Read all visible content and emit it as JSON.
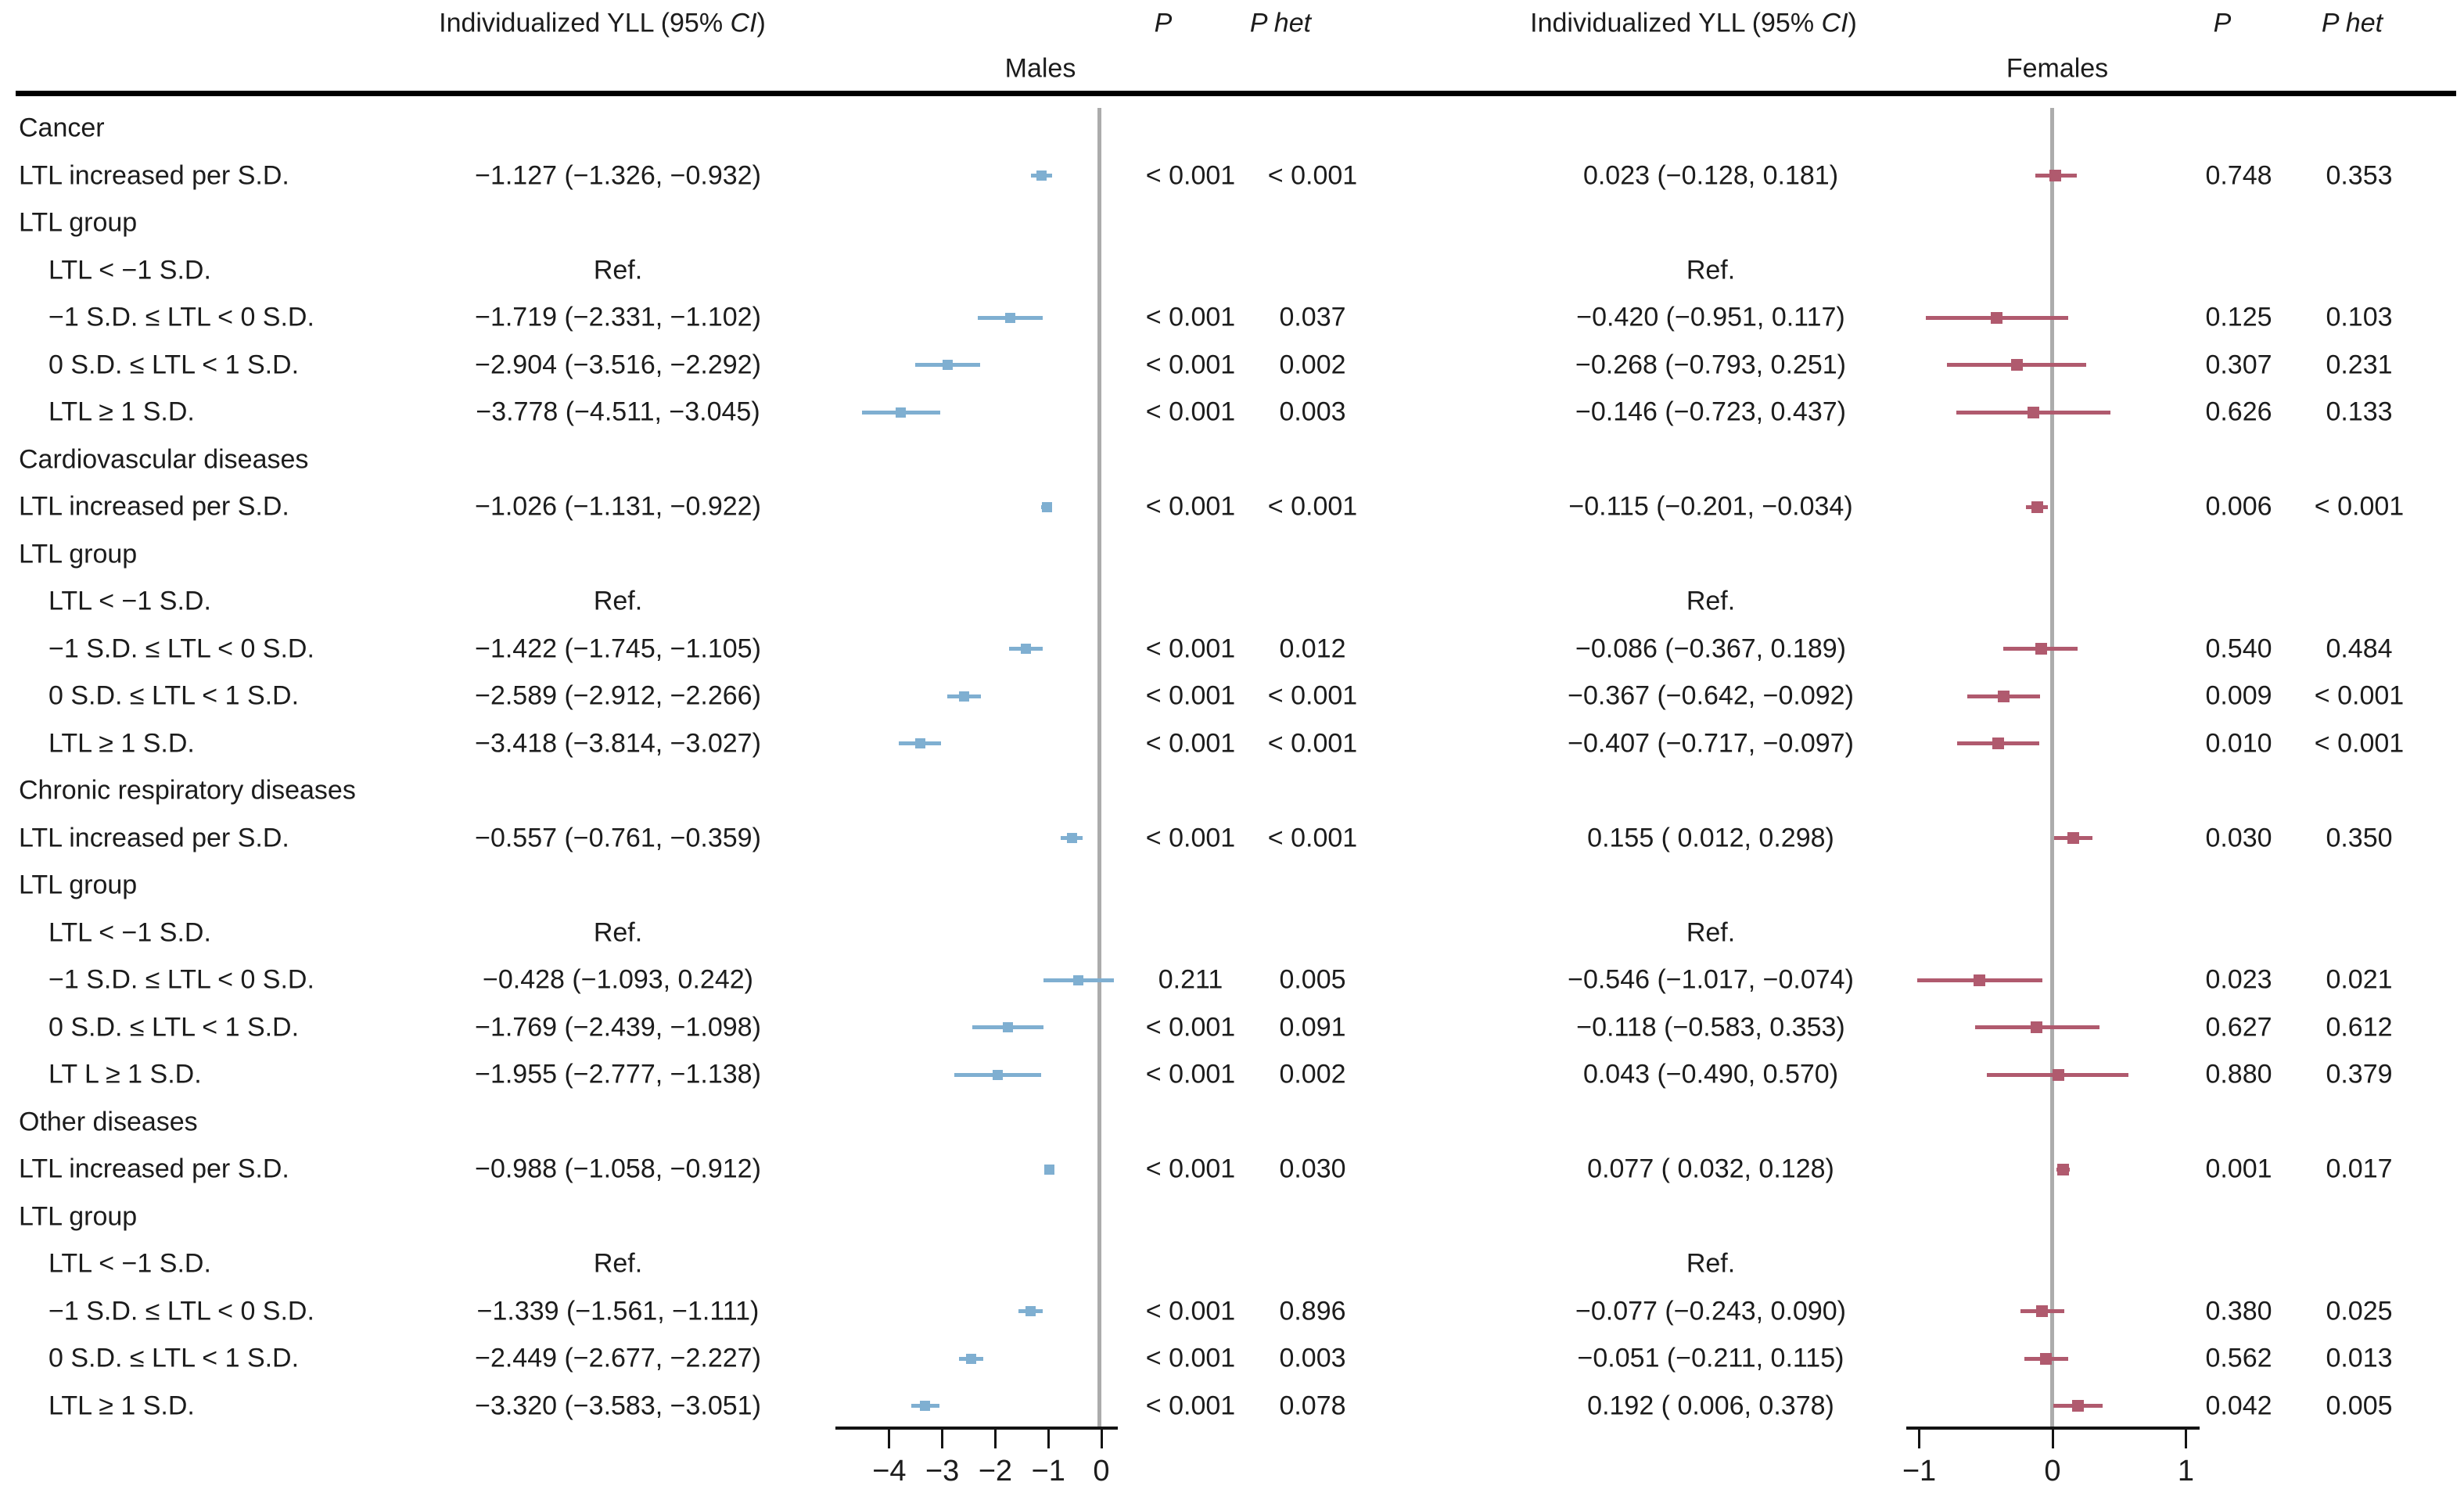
{
  "figure": {
    "header": {
      "yll_prefix": "Individualized YLL (95% ",
      "yll_ci": "CI",
      "yll_suffix": ")",
      "p": "P",
      "p_het": "P het",
      "males": "Males",
      "females": "Females"
    },
    "colors": {
      "male_marker": "#7fafd1",
      "female_marker": "#b05a6e",
      "zero_line": "#acacac",
      "text": "#1c1c1c",
      "rule": "#000000"
    }
  },
  "chart_data": {
    "type": "forest",
    "panels": [
      "Males",
      "Females"
    ],
    "male_axis": {
      "ticks": [
        -4,
        -3,
        -2,
        -1,
        0
      ],
      "tick_labels": [
        "−4",
        "−3",
        "−2",
        "−1",
        "0"
      ],
      "range": [
        -5.0,
        0.3
      ]
    },
    "female_axis": {
      "ticks": [
        -1,
        0,
        1
      ],
      "tick_labels": [
        "−1",
        "0",
        "1"
      ],
      "range": [
        -1.1,
        1.1
      ]
    },
    "rows": [
      {
        "label": "Cancer",
        "indent": 0,
        "kind": "section"
      },
      {
        "label": "LTL increased per S.D.",
        "indent": 0,
        "kind": "data",
        "male": {
          "text": "−1.127 (−1.326, −0.932)",
          "est": -1.127,
          "lo": -1.326,
          "hi": -0.932,
          "p": "< 0.001",
          "p_het": "< 0.001"
        },
        "female": {
          "text": "0.023 (−0.128, 0.181)",
          "est": 0.023,
          "lo": -0.128,
          "hi": 0.181,
          "p": "0.748",
          "p_het": "0.353"
        }
      },
      {
        "label": "LTL group",
        "indent": 0,
        "kind": "section"
      },
      {
        "label": "LTL < −1 S.D.",
        "indent": 1,
        "kind": "ref",
        "ref_text": "Ref."
      },
      {
        "label": "−1 S.D. ≤ LTL < 0 S.D.",
        "indent": 1,
        "kind": "data",
        "male": {
          "text": "−1.719 (−2.331, −1.102)",
          "est": -1.719,
          "lo": -2.331,
          "hi": -1.102,
          "p": "< 0.001",
          "p_het": "0.037"
        },
        "female": {
          "text": "−0.420 (−0.951, 0.117)",
          "est": -0.42,
          "lo": -0.951,
          "hi": 0.117,
          "p": "0.125",
          "p_het": "0.103"
        }
      },
      {
        "label": "0 S.D. ≤ LTL < 1 S.D.",
        "indent": 1,
        "kind": "data",
        "male": {
          "text": "−2.904 (−3.516, −2.292)",
          "est": -2.904,
          "lo": -3.516,
          "hi": -2.292,
          "p": "< 0.001",
          "p_het": "0.002"
        },
        "female": {
          "text": "−0.268 (−0.793, 0.251)",
          "est": -0.268,
          "lo": -0.793,
          "hi": 0.251,
          "p": "0.307",
          "p_het": "0.231"
        }
      },
      {
        "label": "LTL ≥ 1 S.D.",
        "indent": 1,
        "kind": "data",
        "male": {
          "text": "−3.778 (−4.511, −3.045)",
          "est": -3.778,
          "lo": -4.511,
          "hi": -3.045,
          "p": "< 0.001",
          "p_het": "0.003"
        },
        "female": {
          "text": "−0.146 (−0.723, 0.437)",
          "est": -0.146,
          "lo": -0.723,
          "hi": 0.437,
          "p": "0.626",
          "p_het": "0.133"
        }
      },
      {
        "label": "Cardiovascular diseases",
        "indent": 0,
        "kind": "section"
      },
      {
        "label": "LTL increased per S.D.",
        "indent": 0,
        "kind": "data",
        "male": {
          "text": "−1.026 (−1.131, −0.922)",
          "est": -1.026,
          "lo": -1.131,
          "hi": -0.922,
          "p": "< 0.001",
          "p_het": "< 0.001"
        },
        "female": {
          "text": "−0.115 (−0.201, −0.034)",
          "est": -0.115,
          "lo": -0.201,
          "hi": -0.034,
          "p": "0.006",
          "p_het": "< 0.001"
        }
      },
      {
        "label": "LTL group",
        "indent": 0,
        "kind": "section"
      },
      {
        "label": "LTL < −1 S.D.",
        "indent": 1,
        "kind": "ref",
        "ref_text": "Ref."
      },
      {
        "label": "−1 S.D. ≤ LTL < 0 S.D.",
        "indent": 1,
        "kind": "data",
        "male": {
          "text": "−1.422 (−1.745, −1.105)",
          "est": -1.422,
          "lo": -1.745,
          "hi": -1.105,
          "p": "< 0.001",
          "p_het": "0.012"
        },
        "female": {
          "text": "−0.086 (−0.367, 0.189)",
          "est": -0.086,
          "lo": -0.367,
          "hi": 0.189,
          "p": "0.540",
          "p_het": "0.484"
        }
      },
      {
        "label": "0 S.D. ≤ LTL < 1 S.D.",
        "indent": 1,
        "kind": "data",
        "male": {
          "text": "−2.589 (−2.912, −2.266)",
          "est": -2.589,
          "lo": -2.912,
          "hi": -2.266,
          "p": "< 0.001",
          "p_het": "< 0.001"
        },
        "female": {
          "text": "−0.367 (−0.642, −0.092)",
          "est": -0.367,
          "lo": -0.642,
          "hi": -0.092,
          "p": "0.009",
          "p_het": "< 0.001"
        }
      },
      {
        "label": "LTL ≥ 1 S.D.",
        "indent": 1,
        "kind": "data",
        "male": {
          "text": "−3.418 (−3.814, −3.027)",
          "est": -3.418,
          "lo": -3.814,
          "hi": -3.027,
          "p": "< 0.001",
          "p_het": "< 0.001"
        },
        "female": {
          "text": "−0.407 (−0.717, −0.097)",
          "est": -0.407,
          "lo": -0.717,
          "hi": -0.097,
          "p": "0.010",
          "p_het": "< 0.001"
        }
      },
      {
        "label": "Chronic respiratory diseases",
        "indent": 0,
        "kind": "section"
      },
      {
        "label": "LTL increased per S.D.",
        "indent": 0,
        "kind": "data",
        "male": {
          "text": "−0.557 (−0.761, −0.359)",
          "est": -0.557,
          "lo": -0.761,
          "hi": -0.359,
          "p": "< 0.001",
          "p_het": "< 0.001"
        },
        "female": {
          "text": "0.155 ( 0.012, 0.298)",
          "est": 0.155,
          "lo": 0.012,
          "hi": 0.298,
          "p": "0.030",
          "p_het": "0.350"
        }
      },
      {
        "label": "LTL group",
        "indent": 0,
        "kind": "section"
      },
      {
        "label": "LTL < −1 S.D.",
        "indent": 1,
        "kind": "ref",
        "ref_text": "Ref."
      },
      {
        "label": "−1 S.D. ≤ LTL < 0 S.D.",
        "indent": 1,
        "kind": "data",
        "male": {
          "text": "−0.428 (−1.093, 0.242)",
          "est": -0.428,
          "lo": -1.093,
          "hi": 0.242,
          "p": "0.211",
          "p_het": "0.005"
        },
        "female": {
          "text": "−0.546 (−1.017, −0.074)",
          "est": -0.546,
          "lo": -1.017,
          "hi": -0.074,
          "p": "0.023",
          "p_het": "0.021"
        }
      },
      {
        "label": "0 S.D. ≤ LTL < 1 S.D.",
        "indent": 1,
        "kind": "data",
        "male": {
          "text": "−1.769 (−2.439, −1.098)",
          "est": -1.769,
          "lo": -2.439,
          "hi": -1.098,
          "p": "< 0.001",
          "p_het": "0.091"
        },
        "female": {
          "text": "−0.118 (−0.583, 0.353)",
          "est": -0.118,
          "lo": -0.583,
          "hi": 0.353,
          "p": "0.627",
          "p_het": "0.612"
        }
      },
      {
        "label": "LT L ≥ 1 S.D.",
        "indent": 1,
        "kind": "data",
        "male": {
          "text": "−1.955 (−2.777, −1.138)",
          "est": -1.955,
          "lo": -2.777,
          "hi": -1.138,
          "p": "< 0.001",
          "p_het": "0.002"
        },
        "female": {
          "text": "0.043 (−0.490, 0.570)",
          "est": 0.043,
          "lo": -0.49,
          "hi": 0.57,
          "p": "0.880",
          "p_het": "0.379"
        }
      },
      {
        "label": "Other diseases",
        "indent": 0,
        "kind": "section"
      },
      {
        "label": "LTL increased per S.D.",
        "indent": 0,
        "kind": "data",
        "male": {
          "text": "−0.988 (−1.058, −0.912)",
          "est": -0.988,
          "lo": -1.058,
          "hi": -0.912,
          "p": "< 0.001",
          "p_het": "0.030"
        },
        "female": {
          "text": "0.077 ( 0.032, 0.128)",
          "est": 0.077,
          "lo": 0.032,
          "hi": 0.128,
          "p": "0.001",
          "p_het": "0.017"
        }
      },
      {
        "label": "LTL group",
        "indent": 0,
        "kind": "section"
      },
      {
        "label": "LTL < −1 S.D.",
        "indent": 1,
        "kind": "ref",
        "ref_text": "Ref."
      },
      {
        "label": "−1 S.D. ≤ LTL < 0 S.D.",
        "indent": 1,
        "kind": "data",
        "male": {
          "text": "−1.339 (−1.561, −1.111)",
          "est": -1.339,
          "lo": -1.561,
          "hi": -1.111,
          "p": "< 0.001",
          "p_het": "0.896"
        },
        "female": {
          "text": "−0.077 (−0.243, 0.090)",
          "est": -0.077,
          "lo": -0.243,
          "hi": 0.09,
          "p": "0.380",
          "p_het": "0.025"
        }
      },
      {
        "label": "0 S.D. ≤ LTL < 1 S.D.",
        "indent": 1,
        "kind": "data",
        "male": {
          "text": "−2.449 (−2.677, −2.227)",
          "est": -2.449,
          "lo": -2.677,
          "hi": -2.227,
          "p": "< 0.001",
          "p_het": "0.003"
        },
        "female": {
          "text": "−0.051 (−0.211, 0.115)",
          "est": -0.051,
          "lo": -0.211,
          "hi": 0.115,
          "p": "0.562",
          "p_het": "0.013"
        }
      },
      {
        "label": "LTL ≥ 1 S.D.",
        "indent": 1,
        "kind": "data",
        "male": {
          "text": "−3.320 (−3.583, −3.051)",
          "est": -3.32,
          "lo": -3.583,
          "hi": -3.051,
          "p": "< 0.001",
          "p_het": "0.078"
        },
        "female": {
          "text": "0.192 ( 0.006, 0.378)",
          "est": 0.192,
          "lo": 0.006,
          "hi": 0.378,
          "p": "0.042",
          "p_het": "0.005"
        }
      }
    ]
  }
}
